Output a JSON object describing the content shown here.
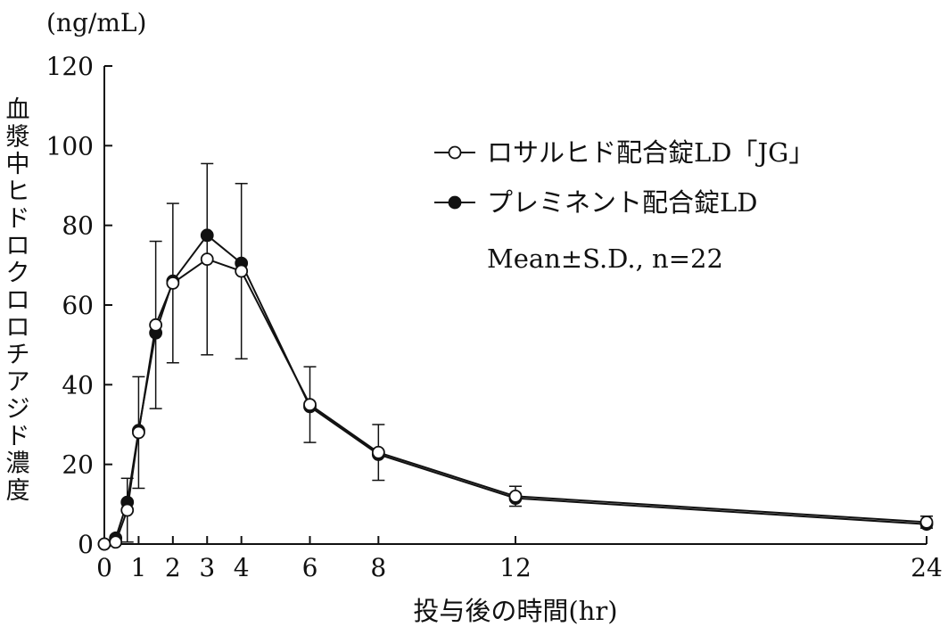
{
  "chart_data": {
    "type": "line",
    "unit_label": "(ng/mL)",
    "ylabel": "血漿中ヒドロクロロチアジド濃度",
    "xlabel": "投与後の時間(hr)",
    "ylim": [
      0,
      120
    ],
    "xlim": [
      0,
      24
    ],
    "yticks": [
      0,
      20,
      40,
      60,
      80,
      100,
      120
    ],
    "xticks": [
      0,
      1,
      2,
      3,
      4,
      6,
      8,
      12,
      24
    ],
    "grid": false,
    "legend_position": "top-right",
    "legend_note": "Mean±S.D., n=22",
    "series": [
      {
        "name": "ロサルヒド配合錠LD「JG」",
        "marker": "open-circle",
        "x": [
          0,
          0.33,
          0.67,
          1,
          1.5,
          2,
          3,
          4,
          6,
          8,
          12,
          24
        ],
        "y": [
          0,
          0.5,
          8.5,
          28,
          55,
          65.5,
          71.5,
          68.5,
          35,
          23,
          12,
          5.5
        ],
        "sd": [
          0,
          1,
          8,
          14,
          21,
          20,
          24,
          22,
          9.5,
          7,
          2.5,
          1.5
        ]
      },
      {
        "name": "プレミネント配合錠LD",
        "marker": "filled-circle",
        "x": [
          0,
          0.33,
          0.67,
          1,
          1.5,
          2,
          3,
          4,
          6,
          8,
          12,
          24
        ],
        "y": [
          0,
          1.5,
          10.5,
          28.5,
          53,
          66,
          77.5,
          70.5,
          34.5,
          22.5,
          11.5,
          5
        ],
        "sd": [
          0,
          0,
          0,
          0,
          0,
          0,
          0,
          0,
          0,
          0,
          0,
          0
        ]
      }
    ]
  }
}
